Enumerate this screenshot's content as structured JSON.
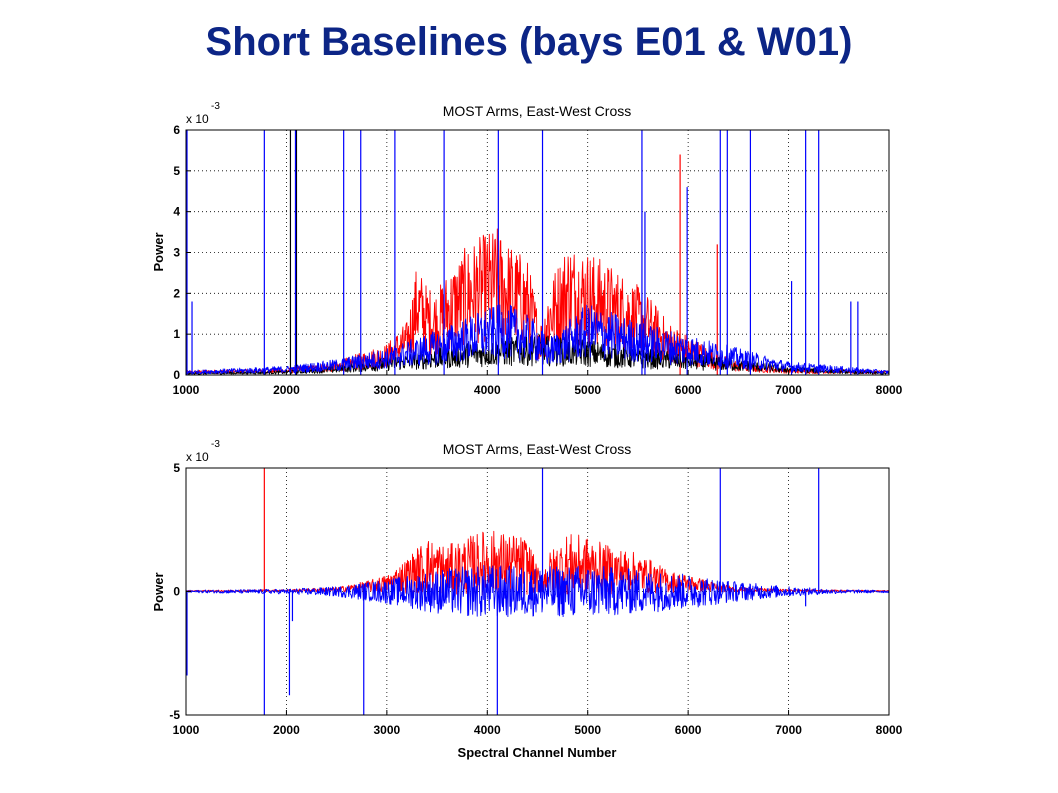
{
  "slide": {
    "title": "Short Baselines (bays E01 & W01)"
  },
  "chart_data": [
    {
      "type": "line",
      "title": "MOST Arms, East-West Cross",
      "ylabel": "Power",
      "xlabel": "",
      "y_multiplier": {
        "base": "x 10",
        "exponent": "-3"
      },
      "xlim": [
        1000,
        8000
      ],
      "ylim": [
        0,
        6
      ],
      "x_ticks": [
        "1000",
        "2000",
        "3000",
        "4000",
        "5000",
        "6000",
        "7000",
        "8000"
      ],
      "y_ticks": [
        "0",
        "1",
        "2",
        "3",
        "4",
        "5",
        "6"
      ],
      "grid": true,
      "series_colors": [
        "#ff0000",
        "#000000",
        "#0000ff"
      ],
      "series": [
        {
          "color": "#ff0000",
          "mode": "noisy",
          "x": [
            1000,
            2000,
            2500,
            2800,
            3000,
            3200,
            3300,
            3400,
            3500,
            3600,
            3800,
            4000,
            4100,
            4200,
            4400,
            4500,
            4550,
            4600,
            4800,
            5000,
            5200,
            5400,
            5600,
            5800,
            6000,
            6300,
            6500,
            7000,
            8000
          ],
          "y_envelope": [
            0.1,
            0.15,
            0.3,
            0.55,
            0.7,
            1.2,
            2.5,
            2.0,
            1.9,
            2.3,
            2.9,
            3.2,
            3.3,
            3.0,
            2.6,
            1.5,
            1.2,
            2.0,
            3.0,
            2.8,
            2.5,
            2.2,
            1.8,
            1.2,
            0.9,
            0.5,
            0.3,
            0.15,
            0.1
          ],
          "spikes": [
            {
              "x": 5920,
              "y": 5.4
            },
            {
              "x": 6290,
              "y": 3.2
            }
          ]
        },
        {
          "color": "#000000",
          "mode": "noisy",
          "x": [
            1000,
            2000,
            2500,
            3000,
            3500,
            4000,
            4500,
            5000,
            5500,
            6000,
            6500,
            7000,
            8000
          ],
          "y_envelope": [
            0.05,
            0.1,
            0.2,
            0.4,
            0.6,
            0.8,
            0.9,
            0.8,
            0.6,
            0.5,
            0.35,
            0.2,
            0.05
          ],
          "spikes": [
            {
              "x": 2040,
              "y": 6.0
            },
            {
              "x": 2100,
              "y": 6.0
            }
          ]
        },
        {
          "color": "#0000ff",
          "mode": "noisy",
          "x": [
            1000,
            2000,
            2500,
            3000,
            3500,
            4000,
            4200,
            4500,
            4600,
            5000,
            5500,
            6000,
            6500,
            7000,
            7500,
            8000
          ],
          "y_envelope": [
            0.1,
            0.2,
            0.35,
            0.6,
            1.0,
            1.5,
            1.6,
            1.2,
            0.8,
            1.6,
            1.2,
            0.9,
            0.6,
            0.3,
            0.2,
            0.1
          ],
          "spikes": [
            {
              "x": 1010,
              "y": 6.0
            },
            {
              "x": 1060,
              "y": 1.8
            },
            {
              "x": 1780,
              "y": 6.0
            },
            {
              "x": 2090,
              "y": 6.0
            },
            {
              "x": 2570,
              "y": 6.0
            },
            {
              "x": 2740,
              "y": 6.0
            },
            {
              "x": 3080,
              "y": 6.0
            },
            {
              "x": 3570,
              "y": 6.0
            },
            {
              "x": 4110,
              "y": 6.0
            },
            {
              "x": 4550,
              "y": 6.0
            },
            {
              "x": 5540,
              "y": 6.0
            },
            {
              "x": 5570,
              "y": 4.0
            },
            {
              "x": 5990,
              "y": 4.6
            },
            {
              "x": 6320,
              "y": 6.0
            },
            {
              "x": 6390,
              "y": 6.0
            },
            {
              "x": 6620,
              "y": 6.0
            },
            {
              "x": 7030,
              "y": 2.3
            },
            {
              "x": 7170,
              "y": 6.0
            },
            {
              "x": 7300,
              "y": 6.0
            },
            {
              "x": 7620,
              "y": 1.8
            },
            {
              "x": 7690,
              "y": 1.8
            }
          ]
        }
      ]
    },
    {
      "type": "line",
      "title": "MOST Arms, East-West Cross",
      "ylabel": "Power",
      "xlabel": "Spectral Channel Number",
      "y_multiplier": {
        "base": "x 10",
        "exponent": "-3"
      },
      "xlim": [
        1000,
        8000
      ],
      "ylim": [
        -5,
        5
      ],
      "x_ticks": [
        "1000",
        "2000",
        "3000",
        "4000",
        "5000",
        "6000",
        "7000",
        "8000"
      ],
      "y_ticks": [
        "-5",
        "0",
        "5"
      ],
      "grid": true,
      "series": [
        {
          "color": "#ff0000",
          "mode": "noisy-positive",
          "x": [
            1000,
            2000,
            2500,
            2800,
            3000,
            3200,
            3400,
            3600,
            3800,
            4000,
            4200,
            4400,
            4500,
            4550,
            4600,
            4800,
            5000,
            5200,
            5400,
            5600,
            5800,
            6000,
            6300,
            6500,
            7000,
            8000
          ],
          "y_envelope": [
            0.05,
            0.1,
            0.2,
            0.5,
            0.8,
            1.6,
            2.6,
            2.2,
            2.6,
            3.0,
            2.8,
            2.6,
            1.2,
            0.8,
            1.8,
            2.8,
            2.6,
            2.2,
            2.0,
            1.6,
            1.0,
            0.8,
            0.4,
            0.2,
            0.1,
            0.05
          ],
          "spikes": [
            {
              "x": 1780,
              "y": 5.0
            }
          ]
        },
        {
          "color": "#0000ff",
          "mode": "noisy-symmetric",
          "x": [
            1000,
            2000,
            2500,
            3000,
            3500,
            4000,
            4500,
            5000,
            5500,
            6000,
            6500,
            7000,
            7500,
            8000
          ],
          "y_envelope": [
            0.05,
            0.1,
            0.2,
            0.5,
            0.9,
            1.1,
            1.0,
            1.1,
            0.9,
            0.7,
            0.4,
            0.2,
            0.08,
            0.05
          ],
          "spikes": [
            {
              "x": 1010,
              "y": -3.4
            },
            {
              "x": 1780,
              "y": -5.0
            },
            {
              "x": 2030,
              "y": -4.2
            },
            {
              "x": 2060,
              "y": -1.2
            },
            {
              "x": 2770,
              "y": -5.0
            },
            {
              "x": 4100,
              "y": -5.0
            },
            {
              "x": 4550,
              "y": 5.0
            },
            {
              "x": 6320,
              "y": 5.0
            },
            {
              "x": 7170,
              "y": -0.6
            },
            {
              "x": 7300,
              "y": 5.0
            }
          ]
        }
      ]
    }
  ]
}
